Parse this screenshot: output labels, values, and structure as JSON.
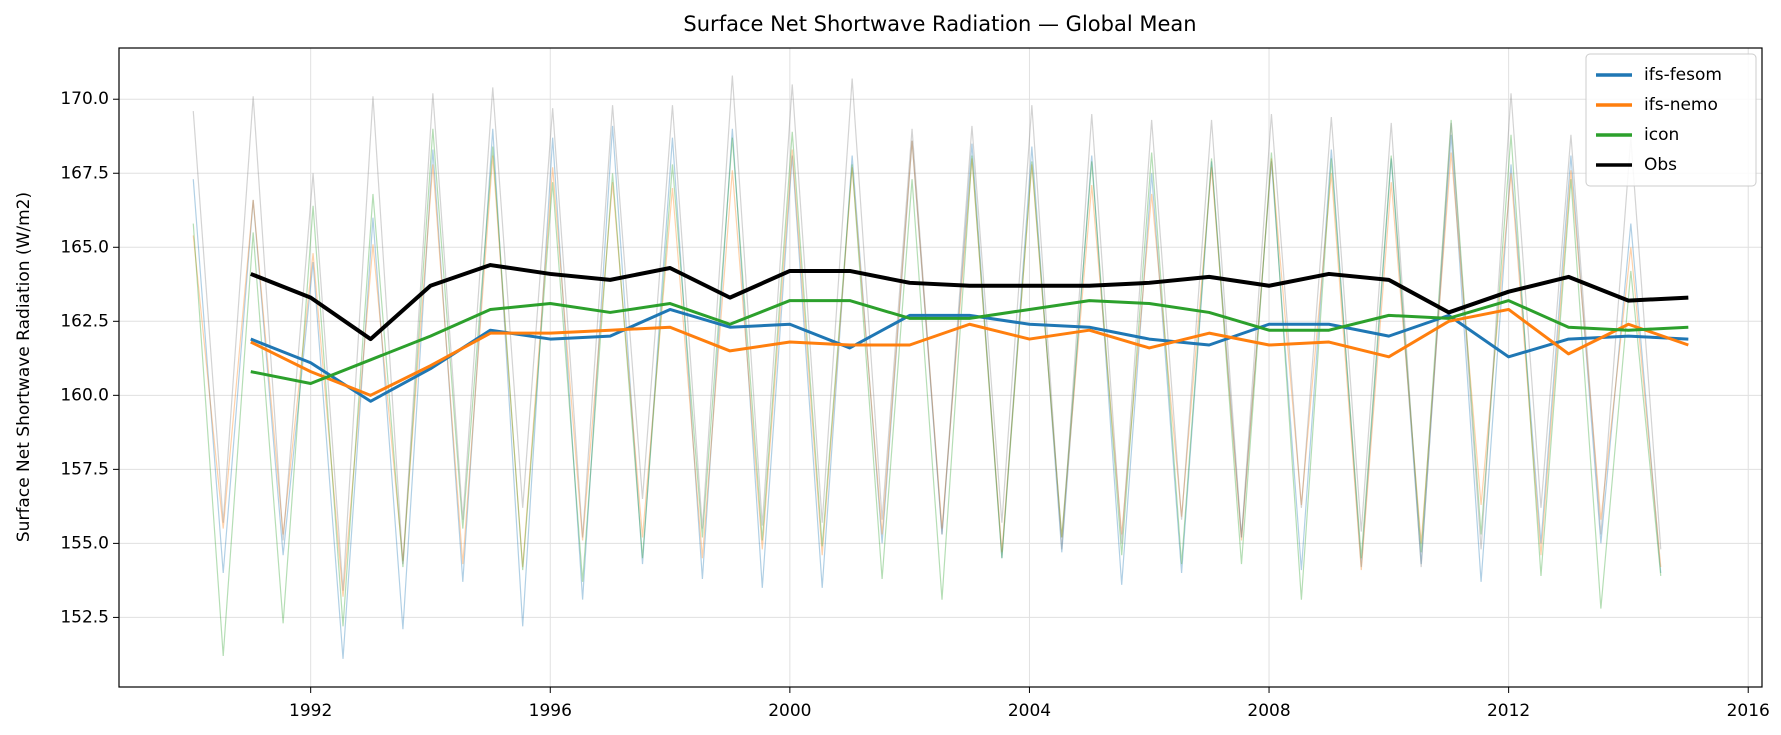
{
  "chart_data": {
    "type": "line",
    "title": "Surface Net Shortwave Radiation — Global Mean",
    "ylabel": "Surface Net Shortwave Radiation (W/m2)",
    "x": [
      1991,
      1992,
      1993,
      1994,
      1995,
      1996,
      1997,
      1998,
      1999,
      2000,
      2001,
      2002,
      2003,
      2004,
      2005,
      2006,
      2007,
      2008,
      2009,
      2010,
      2011,
      2012,
      2013,
      2014,
      2015
    ],
    "series": [
      {
        "name": "ifs-fesom",
        "color": "#1f77b4",
        "values": [
          161.9,
          161.1,
          159.8,
          160.9,
          162.2,
          161.9,
          162.0,
          162.9,
          162.3,
          162.4,
          161.6,
          162.7,
          162.7,
          162.4,
          162.3,
          161.9,
          161.7,
          162.4,
          162.4,
          162.0,
          162.7,
          161.3,
          161.9,
          162.0,
          161.9
        ]
      },
      {
        "name": "ifs-nemo",
        "color": "#ff7f0e",
        "values": [
          161.8,
          160.8,
          160.0,
          161.0,
          162.1,
          162.1,
          162.2,
          162.3,
          161.5,
          161.8,
          161.7,
          161.7,
          162.4,
          161.9,
          162.2,
          161.6,
          162.1,
          161.7,
          161.8,
          161.3,
          162.5,
          162.9,
          161.4,
          162.4,
          161.7
        ]
      },
      {
        "name": "icon",
        "color": "#2ca02c",
        "values": [
          160.8,
          160.4,
          161.2,
          162.0,
          162.9,
          163.1,
          162.8,
          163.1,
          162.4,
          163.2,
          163.2,
          162.6,
          162.6,
          162.9,
          163.2,
          163.1,
          162.8,
          162.2,
          162.2,
          162.7,
          162.6,
          163.2,
          162.3,
          162.2,
          162.3
        ]
      },
      {
        "name": "Obs",
        "color": "#000000",
        "values": [
          164.1,
          163.3,
          161.9,
          163.7,
          164.4,
          164.1,
          163.9,
          164.3,
          163.3,
          164.2,
          164.2,
          163.8,
          163.7,
          163.7,
          163.7,
          163.8,
          164.0,
          163.7,
          164.1,
          163.9,
          162.8,
          163.5,
          164.0,
          163.2,
          163.3
        ]
      }
    ],
    "monthly": {
      "alpha": 0.35,
      "x": [
        1990.04,
        1990.54,
        1991.04,
        1991.54,
        1992.04,
        1992.54,
        1993.04,
        1993.54,
        1994.04,
        1994.54,
        1995.04,
        1995.54,
        1996.04,
        1996.54,
        1997.04,
        1997.54,
        1998.04,
        1998.54,
        1999.04,
        1999.54,
        2000.04,
        2000.54,
        2001.04,
        2001.54,
        2002.04,
        2002.54,
        2003.04,
        2003.54,
        2004.04,
        2004.54,
        2005.04,
        2005.54,
        2006.04,
        2006.54,
        2007.04,
        2007.54,
        2008.04,
        2008.54,
        2009.04,
        2009.54,
        2010.04,
        2010.54,
        2011.04,
        2011.54,
        2012.04,
        2012.54,
        2013.04,
        2013.54,
        2014.04,
        2014.54
      ],
      "series": [
        {
          "color": "#1f77b4",
          "values": [
            167.3,
            154.0,
            166.6,
            154.6,
            164.5,
            151.1,
            166.0,
            152.1,
            168.3,
            153.7,
            169.0,
            152.2,
            168.7,
            153.1,
            169.1,
            154.3,
            168.7,
            153.8,
            169.0,
            153.5,
            168.1,
            153.5,
            168.1,
            155.0,
            168.6,
            155.3,
            168.5,
            154.5,
            168.4,
            154.7,
            168.1,
            153.6,
            167.5,
            154.0,
            167.9,
            155.2,
            167.9,
            154.1,
            168.3,
            154.2,
            168.0,
            154.3,
            168.8,
            153.7,
            167.8,
            155.0,
            168.1,
            155.0,
            165.8,
            154.0
          ]
        },
        {
          "color": "#ff7f0e",
          "values": [
            165.4,
            155.5,
            166.6,
            155.3,
            164.8,
            153.2,
            165.1,
            154.4,
            167.8,
            154.3,
            168.1,
            154.2,
            167.7,
            155.1,
            167.2,
            155.2,
            167.0,
            154.5,
            167.6,
            154.8,
            168.3,
            154.6,
            167.7,
            155.3,
            168.6,
            155.5,
            168.0,
            154.7,
            167.8,
            155.2,
            167.1,
            155.3,
            166.8,
            155.9,
            167.7,
            155.1,
            168.0,
            156.3,
            167.5,
            154.1,
            167.2,
            155.0,
            168.2,
            156.3,
            167.5,
            154.6,
            167.6,
            155.8,
            165.0,
            154.2
          ]
        },
        {
          "color": "#2ca02c",
          "values": [
            165.8,
            151.2,
            165.5,
            152.3,
            166.4,
            152.2,
            166.8,
            154.2,
            169.0,
            155.5,
            168.4,
            154.1,
            167.2,
            153.7,
            167.5,
            154.5,
            167.8,
            155.2,
            168.7,
            155.1,
            168.9,
            154.9,
            167.8,
            153.8,
            167.3,
            153.1,
            168.1,
            154.5,
            167.9,
            155.2,
            167.9,
            154.6,
            168.2,
            154.3,
            168.0,
            154.3,
            168.2,
            153.1,
            168.0,
            154.5,
            168.1,
            154.7,
            169.3,
            155.3,
            168.8,
            153.9,
            167.3,
            152.8,
            164.2,
            153.9
          ]
        },
        {
          "color": "#808080",
          "values": [
            169.6,
            155.7,
            170.1,
            155.1,
            167.5,
            153.4,
            170.1,
            154.3,
            170.2,
            155.8,
            170.4,
            156.2,
            169.7,
            155.2,
            169.8,
            156.5,
            169.8,
            155.5,
            170.8,
            155.6,
            170.5,
            155.7,
            170.7,
            155.8,
            169.0,
            155.3,
            169.1,
            155.7,
            169.8,
            154.8,
            169.5,
            155.0,
            169.3,
            155.8,
            169.3,
            155.2,
            169.5,
            156.2,
            169.4,
            155.4,
            169.2,
            154.2,
            169.2,
            154.8,
            170.2,
            156.2,
            168.8,
            155.3,
            168.7,
            154.8
          ]
        }
      ]
    },
    "xlim": [
      1988.8,
      2016.23
    ],
    "ylim": [
      150.15,
      171.73
    ],
    "xticks": [
      1992,
      1996,
      2000,
      2004,
      2008,
      2012,
      2016
    ],
    "yticks": [
      152.5,
      {
        "value": 155,
        "label": "155.0"
      },
      157.5,
      {
        "value": 160,
        "label": "160.0"
      },
      162.5,
      {
        "value": 165,
        "label": "165.0"
      },
      167.5,
      {
        "value": 170,
        "label": "170.0"
      }
    ],
    "grid": true,
    "legend": "upper right"
  }
}
